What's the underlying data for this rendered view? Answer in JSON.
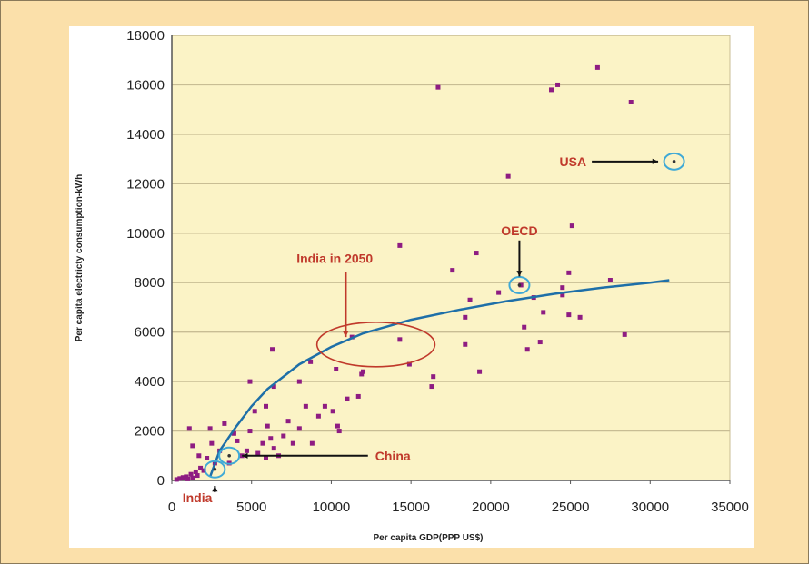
{
  "colors": {
    "page_background": "#FBE0AA",
    "card_background": "#FFFFFF",
    "plot_background": "#FBF3C6",
    "gridline": "#C8BD94",
    "points": "#8E1C82",
    "trend": "#1E6FA8",
    "annotation_text": "#C0392B",
    "highlight_circle": "#3FA9D6",
    "india2050_ellipse": "#C0392B"
  },
  "chart_data": {
    "type": "scatter",
    "title": "",
    "xlabel": "Per capita GDP(PPP US$)",
    "ylabel": "Per capita electricty consumption-kWh",
    "xlim": [
      0,
      35000
    ],
    "ylim": [
      0,
      18000
    ],
    "x_ticks": [
      0,
      5000,
      10000,
      15000,
      20000,
      25000,
      30000,
      35000
    ],
    "y_ticks": [
      0,
      2000,
      4000,
      6000,
      8000,
      10000,
      12000,
      14000,
      16000,
      18000
    ],
    "x_tick_labels": [
      "0",
      "5000",
      "10000",
      "15000",
      "20000",
      "25000",
      "30000",
      "35000"
    ],
    "y_tick_labels": [
      "0",
      "2000",
      "4000",
      "6000",
      "8000",
      "10000",
      "12000",
      "14000",
      "16000",
      "18000"
    ],
    "grid": "horizontal",
    "legend": "none",
    "series": [
      {
        "points": [
          [
            300,
            40
          ],
          [
            500,
            80
          ],
          [
            700,
            120
          ],
          [
            900,
            150
          ],
          [
            1000,
            60
          ],
          [
            1200,
            250
          ],
          [
            1300,
            100
          ],
          [
            1500,
            350
          ],
          [
            1600,
            200
          ],
          [
            1800,
            500
          ],
          [
            2000,
            400
          ],
          [
            1100,
            2100
          ],
          [
            1300,
            1400
          ],
          [
            1700,
            1000
          ],
          [
            2200,
            900
          ],
          [
            2500,
            1500
          ],
          [
            2400,
            2100
          ],
          [
            2700,
            700
          ],
          [
            3000,
            1200
          ],
          [
            3300,
            2300
          ],
          [
            3600,
            700
          ],
          [
            3900,
            1900
          ],
          [
            4100,
            1600
          ],
          [
            4400,
            1000
          ],
          [
            4700,
            1200
          ],
          [
            4900,
            2000
          ],
          [
            5200,
            2800
          ],
          [
            5400,
            1100
          ],
          [
            5700,
            1500
          ],
          [
            5900,
            900
          ],
          [
            6200,
            1700
          ],
          [
            6400,
            1300
          ],
          [
            6000,
            2200
          ],
          [
            6700,
            1000
          ],
          [
            7000,
            1800
          ],
          [
            7300,
            2400
          ],
          [
            7600,
            1500
          ],
          [
            8000,
            2100
          ],
          [
            8400,
            3000
          ],
          [
            8800,
            1500
          ],
          [
            9200,
            2600
          ],
          [
            9600,
            3000
          ],
          [
            10100,
            2800
          ],
          [
            10500,
            2000
          ],
          [
            11000,
            3300
          ],
          [
            11700,
            3400
          ],
          [
            12000,
            4400
          ],
          [
            4900,
            4000
          ],
          [
            5900,
            3000
          ],
          [
            6300,
            5300
          ],
          [
            6400,
            3800
          ],
          [
            8000,
            4000
          ],
          [
            8700,
            4800
          ],
          [
            10300,
            4500
          ],
          [
            10400,
            2200
          ],
          [
            11300,
            5800
          ],
          [
            11900,
            4300
          ],
          [
            14300,
            5700
          ],
          [
            14300,
            9500
          ],
          [
            14900,
            4700
          ],
          [
            16300,
            3800
          ],
          [
            16400,
            4200
          ],
          [
            16700,
            15900
          ],
          [
            17600,
            8500
          ],
          [
            18400,
            5500
          ],
          [
            18400,
            6600
          ],
          [
            18700,
            7300
          ],
          [
            19100,
            9200
          ],
          [
            19300,
            4400
          ],
          [
            20500,
            7600
          ],
          [
            21100,
            12300
          ],
          [
            21900,
            7900
          ],
          [
            22100,
            6200
          ],
          [
            22300,
            5300
          ],
          [
            22700,
            7400
          ],
          [
            23100,
            5600
          ],
          [
            23300,
            6800
          ],
          [
            23800,
            15800
          ],
          [
            24200,
            16000
          ],
          [
            24500,
            7500
          ],
          [
            24900,
            6700
          ],
          [
            24900,
            8400
          ],
          [
            25100,
            10300
          ],
          [
            25600,
            6600
          ],
          [
            26700,
            16700
          ],
          [
            27500,
            8100
          ],
          [
            28400,
            5900
          ],
          [
            28800,
            15300
          ],
          [
            24500,
            7800
          ]
        ]
      }
    ],
    "trend_line": [
      [
        2400,
        150
      ],
      [
        3000,
        1200
      ],
      [
        4000,
        2150
      ],
      [
        5000,
        3000
      ],
      [
        6000,
        3700
      ],
      [
        8000,
        4700
      ],
      [
        10000,
        5400
      ],
      [
        12000,
        5950
      ],
      [
        15000,
        6500
      ],
      [
        18000,
        6900
      ],
      [
        21000,
        7250
      ],
      [
        24000,
        7550
      ],
      [
        27000,
        7800
      ],
      [
        30000,
        8000
      ],
      [
        31200,
        8100
      ]
    ],
    "highlights": [
      {
        "name": "USA",
        "x": 31500,
        "y": 12900
      },
      {
        "name": "OECD",
        "x": 21800,
        "y": 7900
      },
      {
        "name": "China",
        "x": 3600,
        "y": 1000
      },
      {
        "name": "India",
        "x": 2700,
        "y": 450
      }
    ],
    "annotations": [
      {
        "label": "USA",
        "x": 26000,
        "y": 12900,
        "target_x": 30500,
        "target_y": 12900
      },
      {
        "label": "OECD",
        "x": 21800,
        "y": 10000,
        "target_x": 21800,
        "target_y": 8250
      },
      {
        "label": "China",
        "x": 12300,
        "y": 1000,
        "target_x": 4400,
        "target_y": 1000
      },
      {
        "label": "India",
        "x": 1600,
        "y": -700,
        "target_x": 2700,
        "target_y": 0
      },
      {
        "label": "India in 2050",
        "x": 10900,
        "y": 8800,
        "target_x": 10900,
        "target_y": 5800
      }
    ],
    "india_2050_region": {
      "x": 12800,
      "y": 5500,
      "rx": 3700,
      "ry": 900
    }
  }
}
